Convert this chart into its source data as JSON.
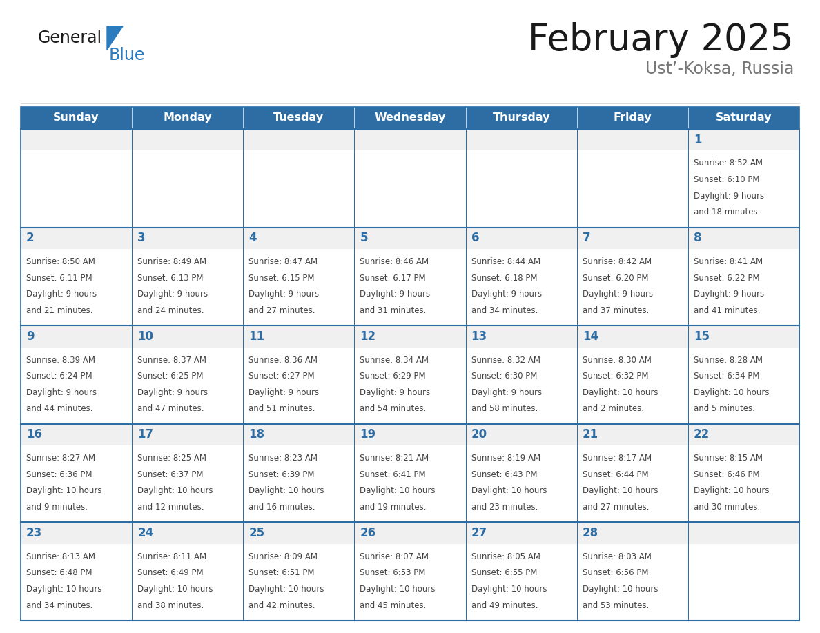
{
  "title": "February 2025",
  "subtitle": "Ust’-Koksa, Russia",
  "days_of_week": [
    "Sunday",
    "Monday",
    "Tuesday",
    "Wednesday",
    "Thursday",
    "Friday",
    "Saturday"
  ],
  "header_bg": "#2E6DA4",
  "header_text": "#FFFFFF",
  "cell_bg": "#FFFFFF",
  "cell_top_bg": "#EFEFEF",
  "cell_border": "#2E6DA4",
  "day_number_color": "#2E6DA4",
  "info_text_color": "#444444",
  "title_color": "#1a1a1a",
  "subtitle_color": "#666666",
  "general_color": "#1a1a1a",
  "blue_color": "#2B7BBF",
  "weeks": [
    [
      null,
      null,
      null,
      null,
      null,
      null,
      1
    ],
    [
      2,
      3,
      4,
      5,
      6,
      7,
      8
    ],
    [
      9,
      10,
      11,
      12,
      13,
      14,
      15
    ],
    [
      16,
      17,
      18,
      19,
      20,
      21,
      22
    ],
    [
      23,
      24,
      25,
      26,
      27,
      28,
      null
    ]
  ],
  "day_data": {
    "1": {
      "sunrise": "8:52 AM",
      "sunset": "6:10 PM",
      "daylight_hours": "9",
      "daylight_minutes": "18"
    },
    "2": {
      "sunrise": "8:50 AM",
      "sunset": "6:11 PM",
      "daylight_hours": "9",
      "daylight_minutes": "21"
    },
    "3": {
      "sunrise": "8:49 AM",
      "sunset": "6:13 PM",
      "daylight_hours": "9",
      "daylight_minutes": "24"
    },
    "4": {
      "sunrise": "8:47 AM",
      "sunset": "6:15 PM",
      "daylight_hours": "9",
      "daylight_minutes": "27"
    },
    "5": {
      "sunrise": "8:46 AM",
      "sunset": "6:17 PM",
      "daylight_hours": "9",
      "daylight_minutes": "31"
    },
    "6": {
      "sunrise": "8:44 AM",
      "sunset": "6:18 PM",
      "daylight_hours": "9",
      "daylight_minutes": "34"
    },
    "7": {
      "sunrise": "8:42 AM",
      "sunset": "6:20 PM",
      "daylight_hours": "9",
      "daylight_minutes": "37"
    },
    "8": {
      "sunrise": "8:41 AM",
      "sunset": "6:22 PM",
      "daylight_hours": "9",
      "daylight_minutes": "41"
    },
    "9": {
      "sunrise": "8:39 AM",
      "sunset": "6:24 PM",
      "daylight_hours": "9",
      "daylight_minutes": "44"
    },
    "10": {
      "sunrise": "8:37 AM",
      "sunset": "6:25 PM",
      "daylight_hours": "9",
      "daylight_minutes": "47"
    },
    "11": {
      "sunrise": "8:36 AM",
      "sunset": "6:27 PM",
      "daylight_hours": "9",
      "daylight_minutes": "51"
    },
    "12": {
      "sunrise": "8:34 AM",
      "sunset": "6:29 PM",
      "daylight_hours": "9",
      "daylight_minutes": "54"
    },
    "13": {
      "sunrise": "8:32 AM",
      "sunset": "6:30 PM",
      "daylight_hours": "9",
      "daylight_minutes": "58"
    },
    "14": {
      "sunrise": "8:30 AM",
      "sunset": "6:32 PM",
      "daylight_hours": "10",
      "daylight_minutes": "2"
    },
    "15": {
      "sunrise": "8:28 AM",
      "sunset": "6:34 PM",
      "daylight_hours": "10",
      "daylight_minutes": "5"
    },
    "16": {
      "sunrise": "8:27 AM",
      "sunset": "6:36 PM",
      "daylight_hours": "10",
      "daylight_minutes": "9"
    },
    "17": {
      "sunrise": "8:25 AM",
      "sunset": "6:37 PM",
      "daylight_hours": "10",
      "daylight_minutes": "12"
    },
    "18": {
      "sunrise": "8:23 AM",
      "sunset": "6:39 PM",
      "daylight_hours": "10",
      "daylight_minutes": "16"
    },
    "19": {
      "sunrise": "8:21 AM",
      "sunset": "6:41 PM",
      "daylight_hours": "10",
      "daylight_minutes": "19"
    },
    "20": {
      "sunrise": "8:19 AM",
      "sunset": "6:43 PM",
      "daylight_hours": "10",
      "daylight_minutes": "23"
    },
    "21": {
      "sunrise": "8:17 AM",
      "sunset": "6:44 PM",
      "daylight_hours": "10",
      "daylight_minutes": "27"
    },
    "22": {
      "sunrise": "8:15 AM",
      "sunset": "6:46 PM",
      "daylight_hours": "10",
      "daylight_minutes": "30"
    },
    "23": {
      "sunrise": "8:13 AM",
      "sunset": "6:48 PM",
      "daylight_hours": "10",
      "daylight_minutes": "34"
    },
    "24": {
      "sunrise": "8:11 AM",
      "sunset": "6:49 PM",
      "daylight_hours": "10",
      "daylight_minutes": "38"
    },
    "25": {
      "sunrise": "8:09 AM",
      "sunset": "6:51 PM",
      "daylight_hours": "10",
      "daylight_minutes": "42"
    },
    "26": {
      "sunrise": "8:07 AM",
      "sunset": "6:53 PM",
      "daylight_hours": "10",
      "daylight_minutes": "45"
    },
    "27": {
      "sunrise": "8:05 AM",
      "sunset": "6:55 PM",
      "daylight_hours": "10",
      "daylight_minutes": "49"
    },
    "28": {
      "sunrise": "8:03 AM",
      "sunset": "6:56 PM",
      "daylight_hours": "10",
      "daylight_minutes": "53"
    }
  }
}
